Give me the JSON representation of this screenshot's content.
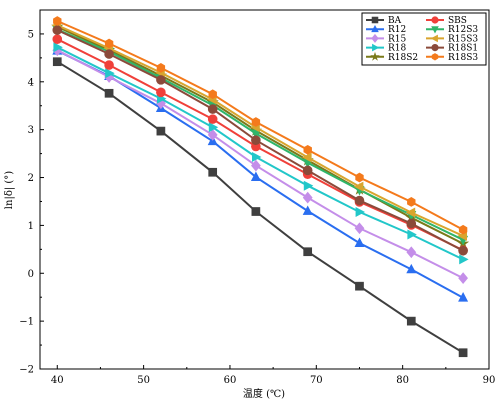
{
  "chart_data": {
    "type": "line",
    "xlabel": "温度 (℃)",
    "ylabel": "ln|δ| (°)",
    "xlim": [
      38,
      90
    ],
    "ylim": [
      -2,
      5.5
    ],
    "xticks": [
      40,
      50,
      60,
      70,
      80,
      90
    ],
    "yticks": [
      -2,
      -1,
      0,
      1,
      2,
      3,
      4,
      5
    ],
    "grid": false,
    "legend_position": "top-right",
    "x": [
      40,
      46,
      52,
      58,
      63,
      69,
      75,
      81,
      87
    ],
    "series": [
      {
        "name": "BA",
        "color": "#3f3f3f",
        "marker": "square",
        "values": [
          4.42,
          3.76,
          2.97,
          2.11,
          1.29,
          0.45,
          -0.27,
          -1.0,
          -1.66
        ]
      },
      {
        "name": "R12",
        "color": "#2a6ef0",
        "marker": "triangle-up",
        "values": [
          4.65,
          4.12,
          3.45,
          2.76,
          2.01,
          1.3,
          0.63,
          0.08,
          -0.51
        ]
      },
      {
        "name": "R15",
        "color": "#c48ee9",
        "marker": "diamond",
        "values": [
          4.66,
          4.1,
          3.55,
          2.89,
          2.25,
          1.58,
          0.94,
          0.44,
          -0.1
        ]
      },
      {
        "name": "R18",
        "color": "#22c7c9",
        "marker": "triangle-right",
        "values": [
          4.72,
          4.18,
          3.65,
          3.05,
          2.43,
          1.83,
          1.28,
          0.81,
          0.29
        ]
      },
      {
        "name": "R18S2",
        "color": "#7a7a1a",
        "marker": "star",
        "values": [
          5.15,
          4.66,
          4.13,
          3.57,
          2.98,
          2.36,
          1.75,
          1.16,
          0.62
        ]
      },
      {
        "name": "SBS",
        "color": "#f0403a",
        "marker": "circle",
        "values": [
          4.89,
          4.35,
          3.78,
          3.22,
          2.65,
          2.07,
          1.49,
          1.01,
          0.48
        ]
      },
      {
        "name": "R12S3",
        "color": "#2fb56a",
        "marker": "triangle-down",
        "values": [
          5.09,
          4.63,
          4.08,
          3.51,
          2.92,
          2.31,
          1.74,
          1.22,
          0.7
        ]
      },
      {
        "name": "R15S3",
        "color": "#d9a52e",
        "marker": "triangle-left",
        "values": [
          5.18,
          4.7,
          4.19,
          3.63,
          3.05,
          2.42,
          1.81,
          1.27,
          0.78
        ]
      },
      {
        "name": "R18S1",
        "color": "#8b4a3a",
        "marker": "circle",
        "values": [
          5.08,
          4.58,
          4.04,
          3.43,
          2.78,
          2.15,
          1.52,
          1.04,
          0.47
        ]
      },
      {
        "name": "R18S3",
        "color": "#f47a1c",
        "marker": "hexagon",
        "values": [
          5.27,
          4.8,
          4.29,
          3.74,
          3.16,
          2.58,
          2.0,
          1.49,
          0.91
        ]
      }
    ]
  }
}
